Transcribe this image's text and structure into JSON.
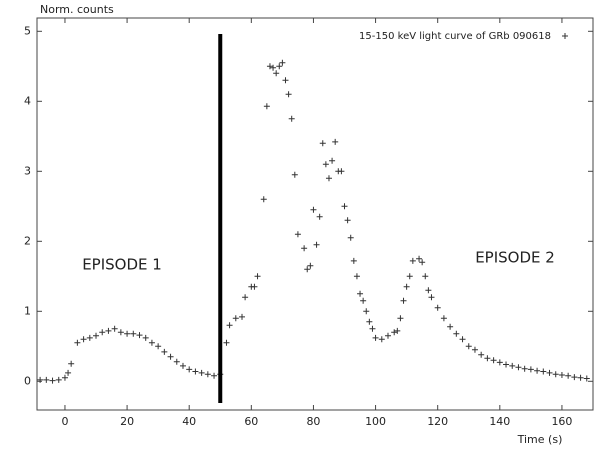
{
  "chart_data": {
    "type": "scatter",
    "y_label": "Norm. counts",
    "x_label": "Time (s)",
    "annotations": [
      "EPISODE 1",
      "EPISODE 2"
    ],
    "vline": 50,
    "xlim": [
      -9,
      170
    ],
    "ylim": [
      -0.41,
      5.19
    ],
    "xticks": [
      0,
      20,
      40,
      60,
      80,
      100,
      120,
      140,
      160
    ],
    "yticks": [
      0,
      1,
      2,
      3,
      4,
      5
    ],
    "legend": "upper right",
    "x": [
      -8,
      -6,
      -4,
      -2,
      0,
      1,
      2,
      4,
      6,
      8,
      10,
      12,
      14,
      16,
      18,
      20,
      22,
      24,
      26,
      28,
      30,
      32,
      34,
      36,
      38,
      40,
      42,
      44,
      46,
      48,
      50,
      52,
      53,
      55,
      57,
      58,
      60,
      61,
      62,
      64,
      65,
      66,
      67,
      68,
      69,
      70,
      71,
      72,
      73,
      74,
      75,
      77,
      78,
      79,
      80,
      81,
      82,
      83,
      84,
      85,
      86,
      87,
      88,
      89,
      90,
      91,
      92,
      93,
      94,
      95,
      96,
      97,
      98,
      99,
      100,
      102,
      104,
      106,
      107,
      108,
      109,
      110,
      111,
      112,
      114,
      115,
      116,
      117,
      118,
      120,
      122,
      124,
      126,
      128,
      130,
      132,
      134,
      136,
      138,
      140,
      142,
      144,
      146,
      148,
      150,
      152,
      154,
      156,
      158,
      160,
      162,
      164,
      166,
      168
    ],
    "series": [
      {
        "name": "15-150 keV light curve of GRb 090618",
        "color": "#333333",
        "values": [
          0.02,
          0.02,
          0.01,
          0.02,
          0.05,
          0.12,
          0.25,
          0.55,
          0.6,
          0.62,
          0.65,
          0.7,
          0.72,
          0.75,
          0.7,
          0.68,
          0.68,
          0.66,
          0.62,
          0.55,
          0.5,
          0.42,
          0.35,
          0.28,
          0.22,
          0.17,
          0.14,
          0.12,
          0.1,
          0.08,
          0.1,
          0.55,
          0.8,
          0.9,
          0.92,
          1.2,
          1.35,
          1.35,
          1.5,
          2.6,
          3.93,
          4.5,
          4.48,
          4.4,
          4.5,
          4.55,
          4.3,
          4.1,
          3.75,
          2.95,
          2.1,
          1.9,
          1.6,
          1.65,
          2.45,
          1.95,
          2.35,
          3.4,
          3.1,
          2.9,
          3.15,
          3.42,
          3.0,
          3.0,
          2.5,
          2.3,
          2.05,
          1.72,
          1.5,
          1.25,
          1.15,
          1.0,
          0.85,
          0.75,
          0.62,
          0.6,
          0.65,
          0.7,
          0.72,
          0.9,
          1.15,
          1.35,
          1.5,
          1.72,
          1.75,
          1.7,
          1.5,
          1.3,
          1.2,
          1.05,
          0.9,
          0.78,
          0.68,
          0.6,
          0.5,
          0.45,
          0.38,
          0.33,
          0.3,
          0.27,
          0.24,
          0.22,
          0.2,
          0.18,
          0.17,
          0.15,
          0.14,
          0.12,
          0.1,
          0.09,
          0.08,
          0.06,
          0.05,
          0.04
        ]
      }
    ]
  }
}
